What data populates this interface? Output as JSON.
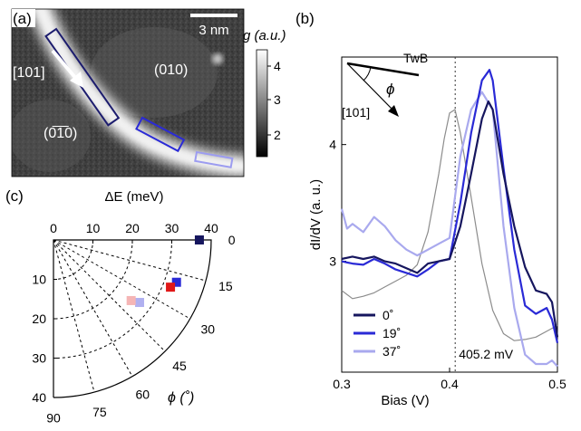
{
  "panel_a": {
    "label": "(a)",
    "scalebar_label": "3 nm",
    "direction_label": "[101]",
    "region_upper": "(010)",
    "region_lower": "(0̅1̅0)",
    "colorbar_title": "g (a.u.)",
    "colorbar_ticks": [
      "4",
      "3",
      "2"
    ],
    "colors": {
      "box_dark": "#1c1c6e",
      "box_mid": "#2a2ad6",
      "box_light": "#9c9cf0"
    }
  },
  "panel_b": {
    "label": "(b)",
    "inset_twb_label": "TwB",
    "inset_phi_label": "ϕ",
    "inset_direction_label": "[101]",
    "ylabel": "dI/dV (a. u.)",
    "xlabel": "Bias (V)",
    "x_ticks": [
      "0.3",
      "0.4",
      "0.5"
    ],
    "y_ticks": [
      "3",
      "4"
    ],
    "vline_label": "405.2 mV",
    "legend": [
      "0˚",
      "19˚",
      "37˚"
    ]
  },
  "panel_c": {
    "label": "(c)",
    "title": "ΔE (meV)",
    "top_ticks": [
      "0",
      "10",
      "20",
      "30",
      "40"
    ],
    "left_ticks": [
      "10",
      "20",
      "30",
      "40"
    ],
    "angle_ticks": [
      "0",
      "15",
      "30",
      "45",
      "60",
      "75",
      "90"
    ],
    "phi_label": "ϕ (˚)"
  },
  "chart_data": [
    {
      "type": "line",
      "xlabel": "Bias (V)",
      "ylabel": "dI/dV (a. u.)",
      "xlim": [
        0.3,
        0.5
      ],
      "ylim": [
        2.05,
        4.75
      ],
      "vline": 0.4052,
      "series": [
        {
          "name": "0˚",
          "color": "#16165e",
          "x": [
            0.3,
            0.31,
            0.32,
            0.33,
            0.34,
            0.35,
            0.36,
            0.37,
            0.38,
            0.39,
            0.4,
            0.41,
            0.42,
            0.43,
            0.436,
            0.44,
            0.45,
            0.46,
            0.47,
            0.48,
            0.49,
            0.495,
            0.5
          ],
          "y": [
            3.02,
            3.04,
            3.02,
            3.04,
            3.0,
            2.98,
            2.94,
            2.9,
            2.98,
            3.0,
            3.02,
            3.3,
            3.75,
            4.22,
            4.37,
            4.3,
            3.75,
            3.3,
            2.95,
            2.75,
            2.72,
            2.65,
            2.35
          ]
        },
        {
          "name": "19˚",
          "color": "#2a2ad6",
          "x": [
            0.3,
            0.31,
            0.32,
            0.33,
            0.34,
            0.35,
            0.36,
            0.37,
            0.38,
            0.39,
            0.4,
            0.41,
            0.42,
            0.43,
            0.437,
            0.44,
            0.45,
            0.46,
            0.47,
            0.48,
            0.49,
            0.495,
            0.5
          ],
          "y": [
            3.0,
            2.98,
            2.97,
            3.02,
            2.98,
            2.93,
            2.9,
            2.87,
            2.93,
            3.0,
            3.02,
            3.5,
            4.1,
            4.55,
            4.64,
            4.55,
            3.8,
            3.1,
            2.62,
            2.55,
            2.6,
            2.5,
            2.3
          ]
        },
        {
          "name": "37˚",
          "color": "#a9a9ee",
          "x": [
            0.3,
            0.305,
            0.31,
            0.32,
            0.33,
            0.34,
            0.35,
            0.36,
            0.37,
            0.38,
            0.39,
            0.4,
            0.41,
            0.42,
            0.43,
            0.44,
            0.45,
            0.46,
            0.47,
            0.48,
            0.49,
            0.495,
            0.5
          ],
          "y": [
            3.45,
            3.28,
            3.32,
            3.25,
            3.38,
            3.3,
            3.18,
            3.1,
            3.05,
            3.1,
            3.15,
            3.2,
            3.9,
            4.3,
            4.45,
            4.3,
            3.3,
            2.6,
            2.2,
            2.12,
            2.12,
            2.15,
            2.1
          ]
        },
        {
          "name": "",
          "color": "#8c8c8c",
          "x": [
            0.3,
            0.31,
            0.32,
            0.33,
            0.34,
            0.35,
            0.36,
            0.37,
            0.38,
            0.39,
            0.395,
            0.4,
            0.405,
            0.41,
            0.42,
            0.43,
            0.44,
            0.45,
            0.46,
            0.47,
            0.48,
            0.49,
            0.5
          ],
          "y": [
            2.75,
            2.68,
            2.7,
            2.73,
            2.78,
            2.83,
            2.88,
            2.97,
            3.25,
            3.75,
            4.05,
            4.27,
            4.3,
            4.1,
            3.55,
            2.98,
            2.58,
            2.38,
            2.32,
            2.33,
            2.35,
            2.4,
            2.45
          ]
        }
      ]
    },
    {
      "type": "scatter",
      "title": "ΔE (meV)",
      "xlabel": "ϕ (˚)",
      "rlim": [
        0,
        40
      ],
      "theta_lim": [
        0,
        90
      ],
      "points": [
        {
          "deltaE": 37,
          "phi": 0,
          "color": "#16165e"
        },
        {
          "deltaE": 33,
          "phi": 19,
          "color": "#2a2ad6"
        },
        {
          "deltaE": 32,
          "phi": 22,
          "color": "#e01818"
        },
        {
          "deltaE": 27,
          "phi": 36,
          "color": "#b0b0f0"
        },
        {
          "deltaE": 25,
          "phi": 38,
          "color": "#f5b5b5"
        }
      ]
    }
  ]
}
